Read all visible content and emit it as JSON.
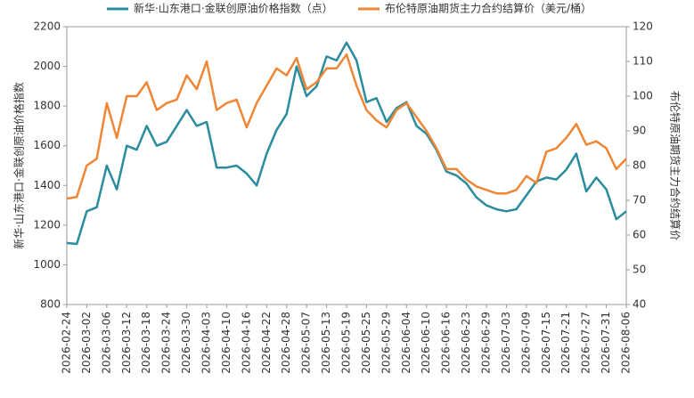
{
  "chart_data": {
    "type": "line",
    "categories": [
      "2026-02-24",
      null,
      "2026-03-02",
      null,
      "2026-03-06",
      null,
      "2026-03-12",
      null,
      "2026-03-18",
      null,
      "2026-03-24",
      null,
      "2026-03-30",
      null,
      "2026-04-03",
      null,
      "2026-04-10",
      null,
      "2026-04-16",
      null,
      "2026-04-22",
      null,
      "2026-04-28",
      null,
      "2026-05-07",
      null,
      "2026-05-13",
      null,
      "2026-05-19",
      null,
      "2026-05-25",
      null,
      "2026-05-29",
      null,
      "2026-06-04",
      null,
      "2026-06-10",
      null,
      "2026-06-16",
      null,
      "2026-06-23",
      null,
      "2026-06-29",
      null,
      "2026-07-03",
      null,
      "2026-07-09",
      null,
      "2026-07-15",
      null,
      "2026-07-21",
      null,
      "2026-07-27",
      null,
      "2026-07-31",
      null,
      "2026-08-06"
    ],
    "series": [
      {
        "name": "新华·山东港口·金联创原油价格指数（点）",
        "color": "#2a8c9e",
        "axis": "y",
        "values": [
          1110,
          1105,
          1270,
          1290,
          1500,
          1380,
          1600,
          1580,
          1700,
          1600,
          1620,
          1700,
          1780,
          1700,
          1720,
          1490,
          1490,
          1500,
          1460,
          1400,
          1560,
          1680,
          1760,
          2000,
          1850,
          1900,
          2050,
          2030,
          2120,
          2030,
          1820,
          1840,
          1720,
          1790,
          1820,
          1700,
          1660,
          1580,
          1470,
          1450,
          1410,
          1340,
          1300,
          1280,
          1270,
          1280,
          1350,
          1420,
          1440,
          1430,
          1480,
          1560,
          1370,
          1440,
          1380,
          1230,
          1270
        ]
      },
      {
        "name": "布伦特原油期货主力合约结算价（美元/桶）",
        "color": "#ee8635",
        "axis": "y2",
        "values": [
          70.5,
          71,
          80,
          82,
          98,
          88,
          100,
          100,
          104,
          96,
          98,
          99,
          106,
          102,
          110,
          96,
          98,
          99,
          91,
          98,
          103,
          108,
          106,
          111,
          102,
          104,
          108,
          108,
          112,
          103,
          96,
          93,
          91,
          96,
          98,
          94,
          90,
          85,
          79,
          79,
          76,
          74,
          73,
          72,
          72,
          73,
          77,
          75,
          84,
          85,
          88,
          92,
          86,
          87,
          85,
          79,
          82
        ]
      }
    ],
    "y_label": "新华·山东港口·金联创原油价格指数",
    "y2_label": "布伦特原油期货主力合约结算价",
    "ylim": [
      800,
      2200
    ],
    "yticks": [
      800,
      1000,
      1200,
      1400,
      1600,
      1800,
      2000,
      2200
    ],
    "y2lim": [
      40,
      120
    ],
    "y2ticks": [
      40,
      50,
      60,
      70,
      80,
      90,
      100,
      110,
      120
    ],
    "legend": "top"
  }
}
